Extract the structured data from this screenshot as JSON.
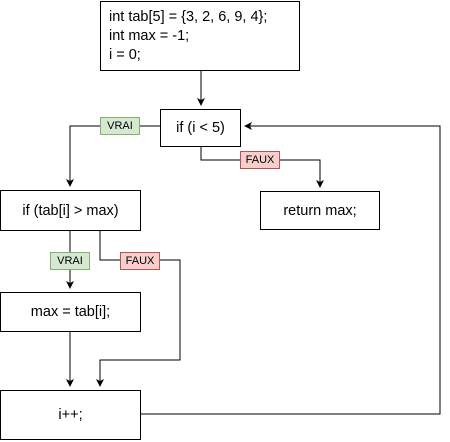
{
  "init": {
    "line1": "int tab[5] = {3, 2, 6, 9, 4};",
    "line2": "int max = -1;",
    "line3": "i = 0;"
  },
  "loop_condition": "if (i < 5)",
  "return_statement": "return max;",
  "compare_condition": "if (tab[i] > max)",
  "assignment": "max = tab[i];",
  "increment": "i++;",
  "labels": {
    "loop_true": "VRAI",
    "loop_false": "FAUX",
    "compare_true": "VRAI",
    "compare_false": "FAUX"
  },
  "colors": {
    "true_fill": "#d5e8d4",
    "true_border": "#82b366",
    "false_fill": "#f8cecc",
    "false_border": "#b85450"
  }
}
